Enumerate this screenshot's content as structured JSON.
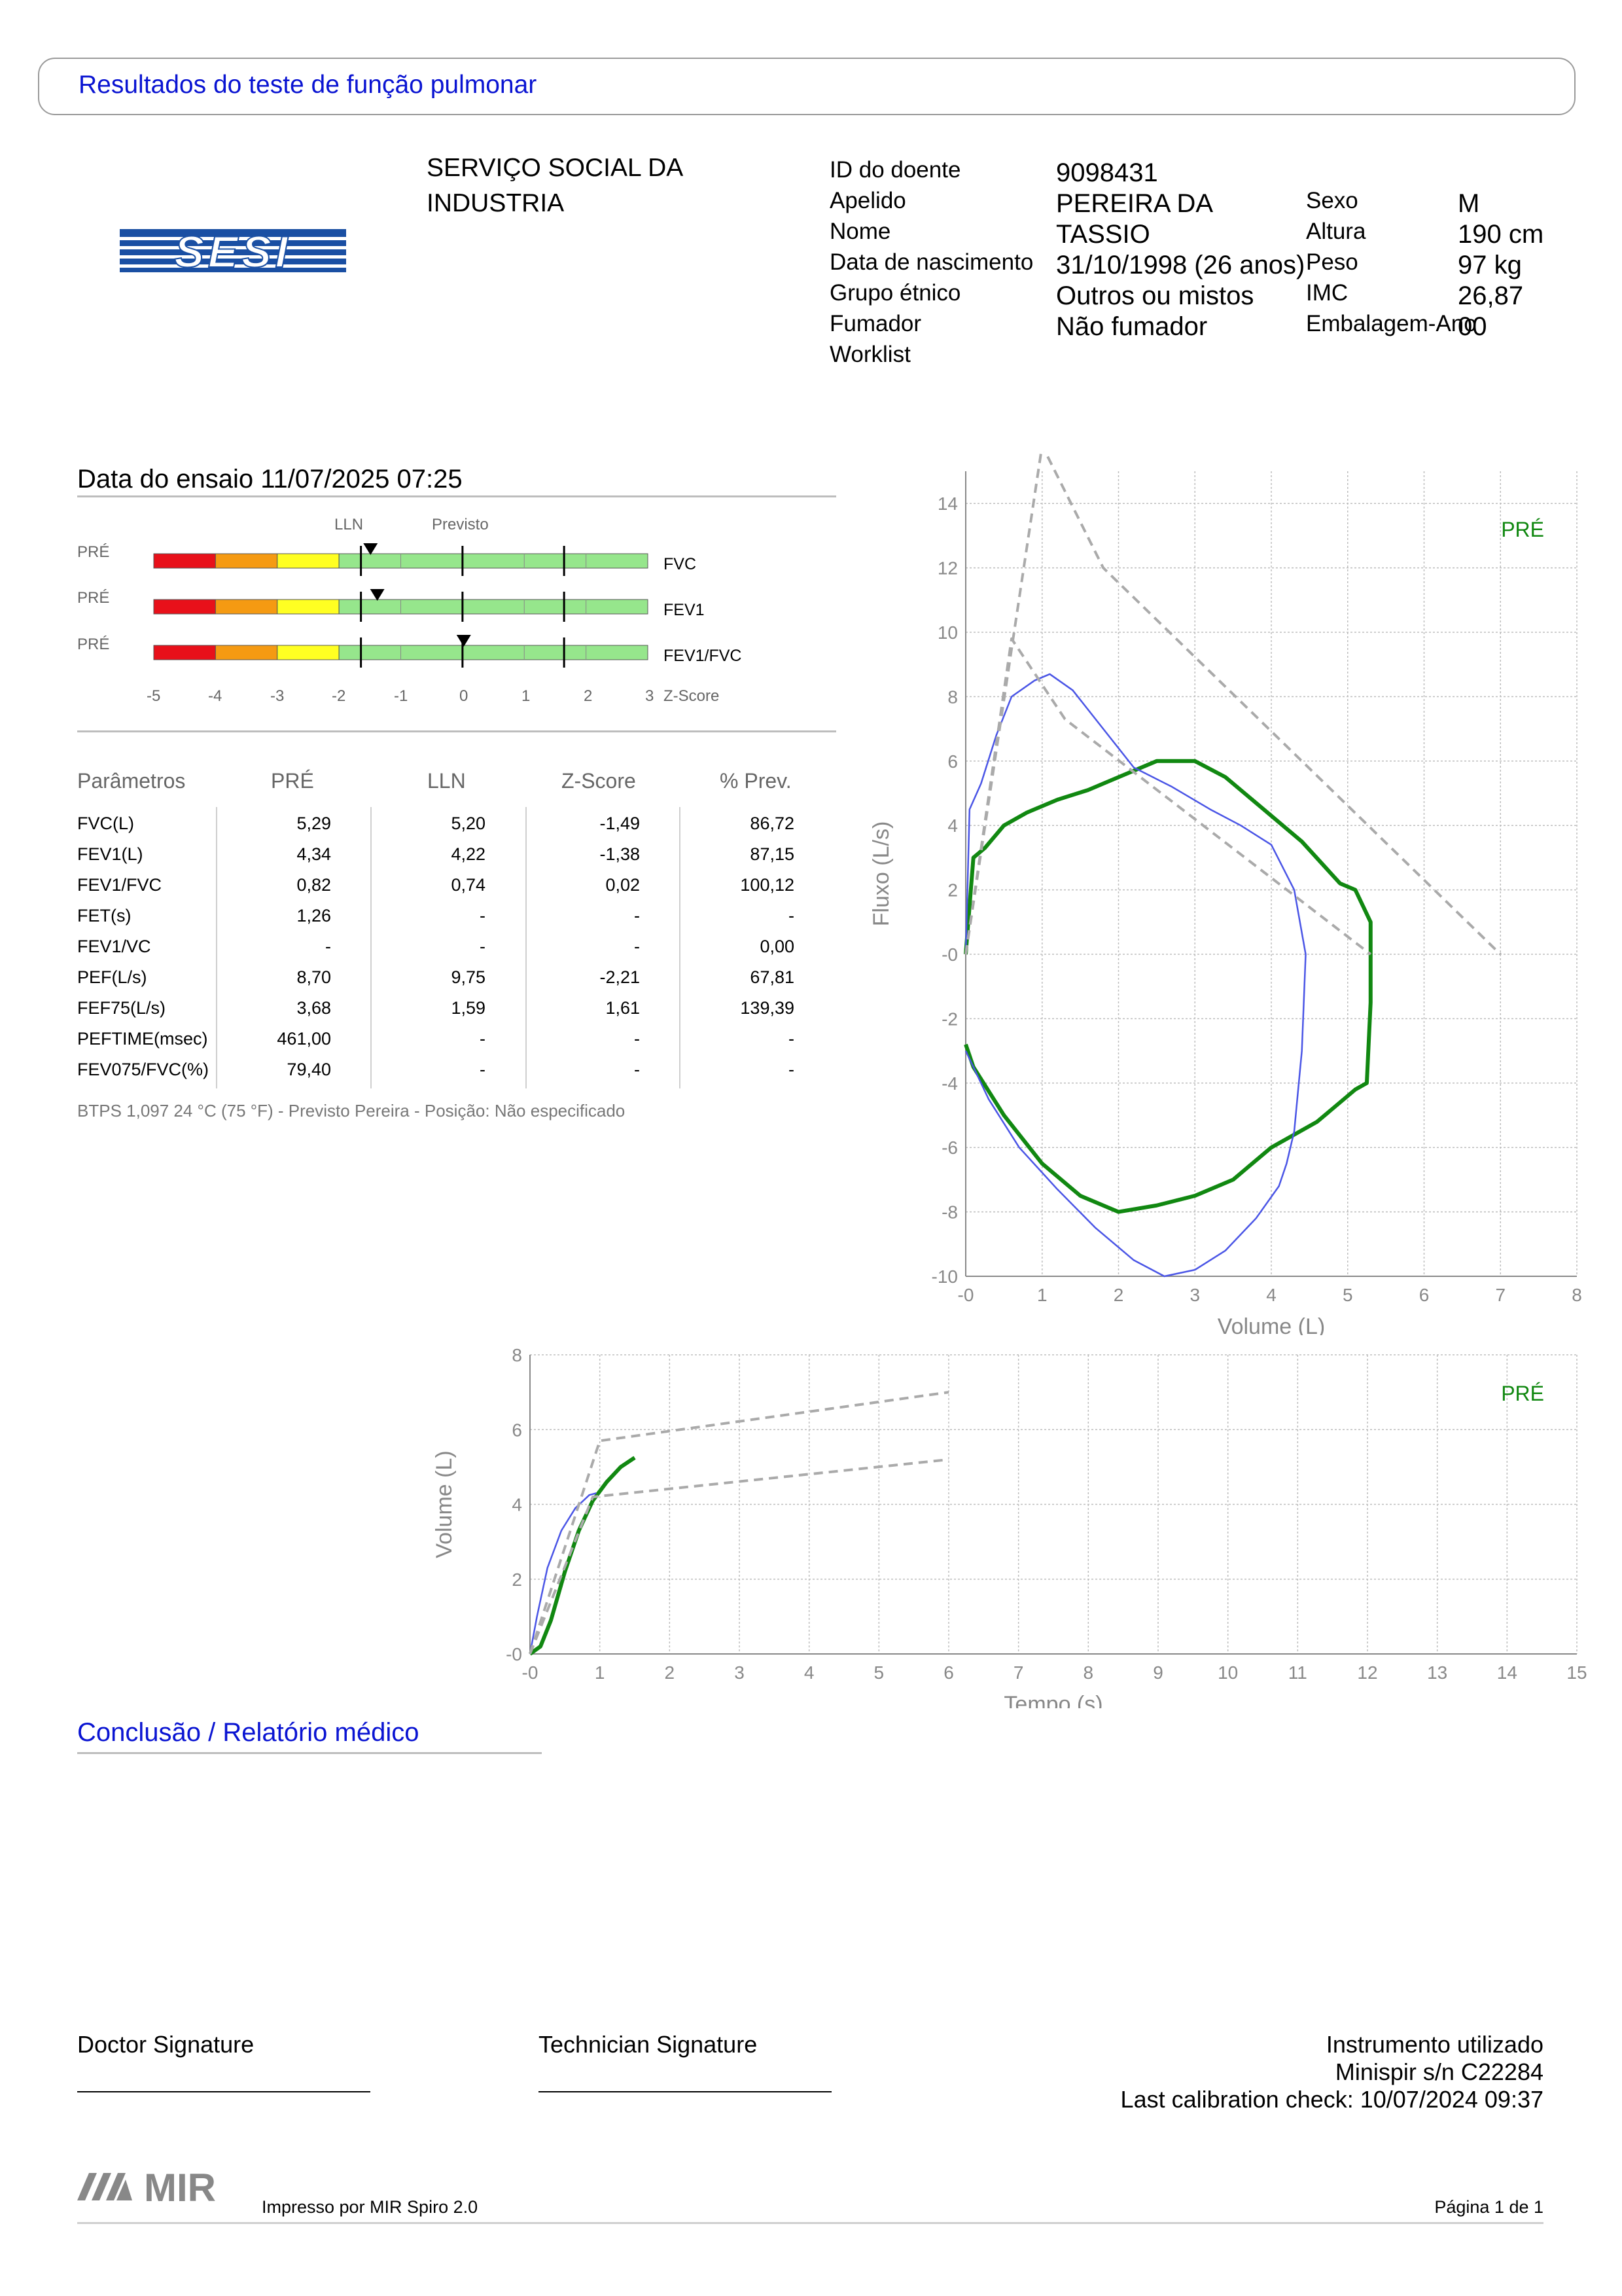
{
  "header": {
    "title": "Resultados do teste de função pulmonar"
  },
  "logo": {
    "text": "SESI"
  },
  "organization": {
    "line1": "SERVIÇO SOCIAL DA",
    "line2": "INDUSTRIA"
  },
  "patient": {
    "id_label": "ID do doente",
    "id": "9098431",
    "surname_label": "Apelido",
    "surname": "PEREIRA DA",
    "name_label": "Nome",
    "name": "TASSIO",
    "dob_label": "Data de nascimento",
    "dob": "31/10/1998 (26 anos)",
    "ethnic_label": "Grupo étnico",
    "ethnic": "Outros ou mistos",
    "smoker_label": "Fumador",
    "smoker": "Não fumador",
    "worklist_label": "Worklist",
    "sex_label": "Sexo",
    "sex": "M",
    "height_label": "Altura",
    "height": "190 cm",
    "weight_label": "Peso",
    "weight": "97 kg",
    "bmi_label": "IMC",
    "bmi": "26,87",
    "pack_label": "Embalagem-Ano",
    "pack": "00"
  },
  "test": {
    "date_label": "Data do ensaio 11/07/2025 07:25"
  },
  "zscore": {
    "lln_label": "LLN",
    "pred_label": "Previsto",
    "axis_label": "Z-Score",
    "ticks": [
      "-5",
      "-4",
      "-3",
      "-2",
      "-1",
      "0",
      "1",
      "2",
      "3"
    ],
    "rows": [
      {
        "pre": "PRÉ",
        "name": "FVC",
        "z": -1.49
      },
      {
        "pre": "PRÉ",
        "name": "FEV1",
        "z": -1.38
      },
      {
        "pre": "PRÉ",
        "name": "FEV1/FVC",
        "z": 0.02
      }
    ]
  },
  "params": {
    "headers": [
      "Parâmetros",
      "PRÉ",
      "LLN",
      "Z-Score",
      "% Prev."
    ],
    "rows": [
      [
        "FVC(L)",
        "5,29",
        "5,20",
        "-1,49",
        "86,72"
      ],
      [
        "FEV1(L)",
        "4,34",
        "4,22",
        "-1,38",
        "87,15"
      ],
      [
        "FEV1/FVC",
        "0,82",
        "0,74",
        "0,02",
        "100,12"
      ],
      [
        "FET(s)",
        "1,26",
        "-",
        "-",
        "-"
      ],
      [
        "FEV1/VC",
        "-",
        "-",
        "-",
        "0,00"
      ],
      [
        "PEF(L/s)",
        "8,70",
        "9,75",
        "-2,21",
        "67,81"
      ],
      [
        "FEF75(L/s)",
        "3,68",
        "1,59",
        "1,61",
        "139,39"
      ],
      [
        "PEFTIME(msec)",
        "461,00",
        "-",
        "-",
        "-"
      ],
      [
        "FEV075/FVC(%)",
        "79,40",
        "-",
        "-",
        "-"
      ]
    ],
    "note": "BTPS 1,097 24 °C (75 °F) - Previsto Pereira - Posição: Não especificado"
  },
  "chart_data": [
    {
      "type": "line",
      "title": "",
      "xlabel": "Volume (L)",
      "ylabel": "Fluxo (L/s)",
      "xlim": [
        0,
        8
      ],
      "ylim": [
        -10,
        15
      ],
      "xticks": [
        "-0",
        "1",
        "2",
        "3",
        "4",
        "5",
        "6",
        "7",
        "8"
      ],
      "yticks": [
        "14",
        "12",
        "10",
        "8",
        "6",
        "4",
        "2",
        "-0",
        "-2",
        "-4",
        "-6",
        "-8",
        "-10"
      ],
      "grid": true,
      "legend": "PRÉ",
      "colors": {
        "pre": "#118811",
        "other": "#4a55e6",
        "pred": "#aaaaaa"
      },
      "series": [
        {
          "name": "PRÉ",
          "style": "pre",
          "x": [
            0,
            0.1,
            0.25,
            0.5,
            0.8,
            1.2,
            1.6,
            2.0,
            2.5,
            3.0,
            3.4,
            3.9,
            4.4,
            4.9,
            5.1,
            5.3,
            5.3,
            5.25,
            5.1,
            4.6,
            4.0,
            3.5,
            3.0,
            2.5,
            2.0,
            1.5,
            1.0,
            0.5,
            0.1,
            0
          ],
          "y": [
            0,
            3,
            3.3,
            4,
            4.4,
            4.8,
            5.1,
            5.5,
            6.0,
            6.0,
            5.5,
            4.5,
            3.5,
            2.2,
            2.0,
            1.0,
            -1.5,
            -4.0,
            -4.2,
            -5.2,
            -6.0,
            -7.0,
            -7.5,
            -7.8,
            -8.0,
            -7.5,
            -6.5,
            -5.0,
            -3.5,
            -2.8
          ]
        },
        {
          "name": "",
          "style": "other",
          "x": [
            0,
            0.05,
            0.2,
            0.4,
            0.6,
            0.9,
            1.1,
            1.4,
            1.8,
            2.2,
            2.7,
            3.2,
            3.6,
            4.0,
            4.3,
            4.45,
            4.4,
            4.3,
            4.2,
            4.1,
            3.8,
            3.4,
            3.0,
            2.6,
            2.2,
            1.7,
            1.2,
            0.7,
            0.3,
            0
          ],
          "y": [
            0,
            4.5,
            5.3,
            6.8,
            8.0,
            8.5,
            8.7,
            8.2,
            7.0,
            5.8,
            5.2,
            4.5,
            4.0,
            3.4,
            2.0,
            0,
            -3.0,
            -5.5,
            -6.5,
            -7.2,
            -8.2,
            -9.2,
            -9.8,
            -10.0,
            -9.5,
            -8.5,
            -7.3,
            -6.0,
            -4.5,
            -3.0
          ]
        },
        {
          "name": "",
          "style": "pred",
          "x": [
            0,
            1.0,
            1.8,
            7.0
          ],
          "y": [
            0,
            15.8,
            12.0,
            0
          ]
        },
        {
          "name": "",
          "style": "pred",
          "x": [
            0,
            0.6,
            1.3,
            5.3
          ],
          "y": [
            0,
            9.8,
            7.3,
            0
          ]
        }
      ]
    },
    {
      "type": "line",
      "title": "",
      "xlabel": "Tempo (s)",
      "ylabel": "Volume (L)",
      "xlim": [
        0,
        15
      ],
      "ylim": [
        0,
        8
      ],
      "xticks": [
        "-0",
        "1",
        "2",
        "3",
        "4",
        "5",
        "6",
        "7",
        "8",
        "9",
        "10",
        "11",
        "12",
        "13",
        "14",
        "15"
      ],
      "yticks": [
        "8",
        "6",
        "4",
        "2",
        "-0"
      ],
      "grid": true,
      "legend": "PRÉ",
      "series": [
        {
          "name": "PRÉ",
          "style": "pre",
          "x": [
            0,
            0.15,
            0.3,
            0.5,
            0.7,
            0.9,
            1.1,
            1.3,
            1.5
          ],
          "y": [
            0,
            0.2,
            0.9,
            2.2,
            3.3,
            4.1,
            4.6,
            5.0,
            5.25
          ]
        },
        {
          "name": "",
          "style": "other",
          "x": [
            0,
            0.1,
            0.25,
            0.45,
            0.65,
            0.85,
            0.95
          ],
          "y": [
            0,
            1.0,
            2.3,
            3.3,
            3.9,
            4.25,
            4.3
          ]
        },
        {
          "name": "",
          "style": "pred",
          "x": [
            0,
            1.0,
            6.0
          ],
          "y": [
            0,
            5.7,
            7.0
          ]
        },
        {
          "name": "",
          "style": "pred",
          "x": [
            0,
            0.9,
            6.0
          ],
          "y": [
            0,
            4.2,
            5.2
          ]
        }
      ]
    }
  ],
  "conclusion": {
    "title": "Conclusão / Relatório médico"
  },
  "signatures": {
    "doctor": "Doctor Signature",
    "technician": "Technician Signature"
  },
  "instrument": {
    "line1": "Instrumento utilizado",
    "line2": "Minispir s/n C22284",
    "line3": "Last calibration check: 10/07/2024 09:37"
  },
  "footer": {
    "brand": "MIR",
    "printed": "Impresso por MIR Spiro 2.0",
    "page": "Página 1 de 1"
  }
}
